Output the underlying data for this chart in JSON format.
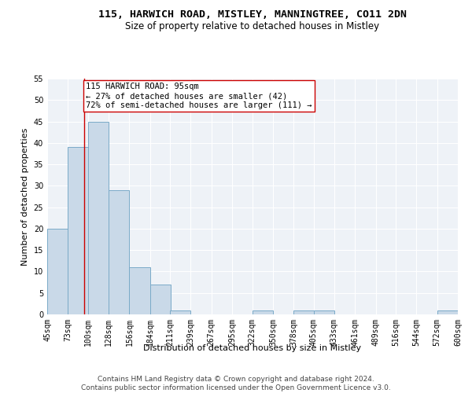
{
  "title": "115, HARWICH ROAD, MISTLEY, MANNINGTREE, CO11 2DN",
  "subtitle": "Size of property relative to detached houses in Mistley",
  "xlabel": "Distribution of detached houses by size in Mistley",
  "ylabel": "Number of detached properties",
  "bar_left_edges": [
    45,
    73,
    100,
    128,
    156,
    184,
    211,
    239,
    267,
    295,
    322,
    350,
    378,
    405,
    433,
    461,
    489,
    516,
    544,
    572
  ],
  "bar_heights": [
    20,
    39,
    45,
    29,
    11,
    7,
    1,
    0,
    0,
    0,
    1,
    0,
    1,
    1,
    0,
    0,
    0,
    0,
    0,
    1
  ],
  "bin_width": 28,
  "bar_color": "#c9d9e8",
  "bar_edge_color": "#7aaac8",
  "tick_labels": [
    "45sqm",
    "73sqm",
    "100sqm",
    "128sqm",
    "156sqm",
    "184sqm",
    "211sqm",
    "239sqm",
    "267sqm",
    "295sqm",
    "322sqm",
    "350sqm",
    "378sqm",
    "405sqm",
    "433sqm",
    "461sqm",
    "489sqm",
    "516sqm",
    "544sqm",
    "572sqm",
    "600sqm"
  ],
  "ylim": [
    0,
    55
  ],
  "yticks": [
    0,
    5,
    10,
    15,
    20,
    25,
    30,
    35,
    40,
    45,
    50,
    55
  ],
  "property_value": 95,
  "vline_color": "#cc0000",
  "annotation_text": "115 HARWICH ROAD: 95sqm\n← 27% of detached houses are smaller (42)\n72% of semi-detached houses are larger (111) →",
  "annotation_box_color": "#ffffff",
  "annotation_box_edge": "#cc0000",
  "footer_text": "Contains HM Land Registry data © Crown copyright and database right 2024.\nContains public sector information licensed under the Open Government Licence v3.0.",
  "background_color": "#eef2f7",
  "grid_color": "#ffffff",
  "title_fontsize": 9.5,
  "subtitle_fontsize": 8.5,
  "axis_label_fontsize": 8,
  "tick_fontsize": 7,
  "annotation_fontsize": 7.5,
  "footer_fontsize": 6.5
}
